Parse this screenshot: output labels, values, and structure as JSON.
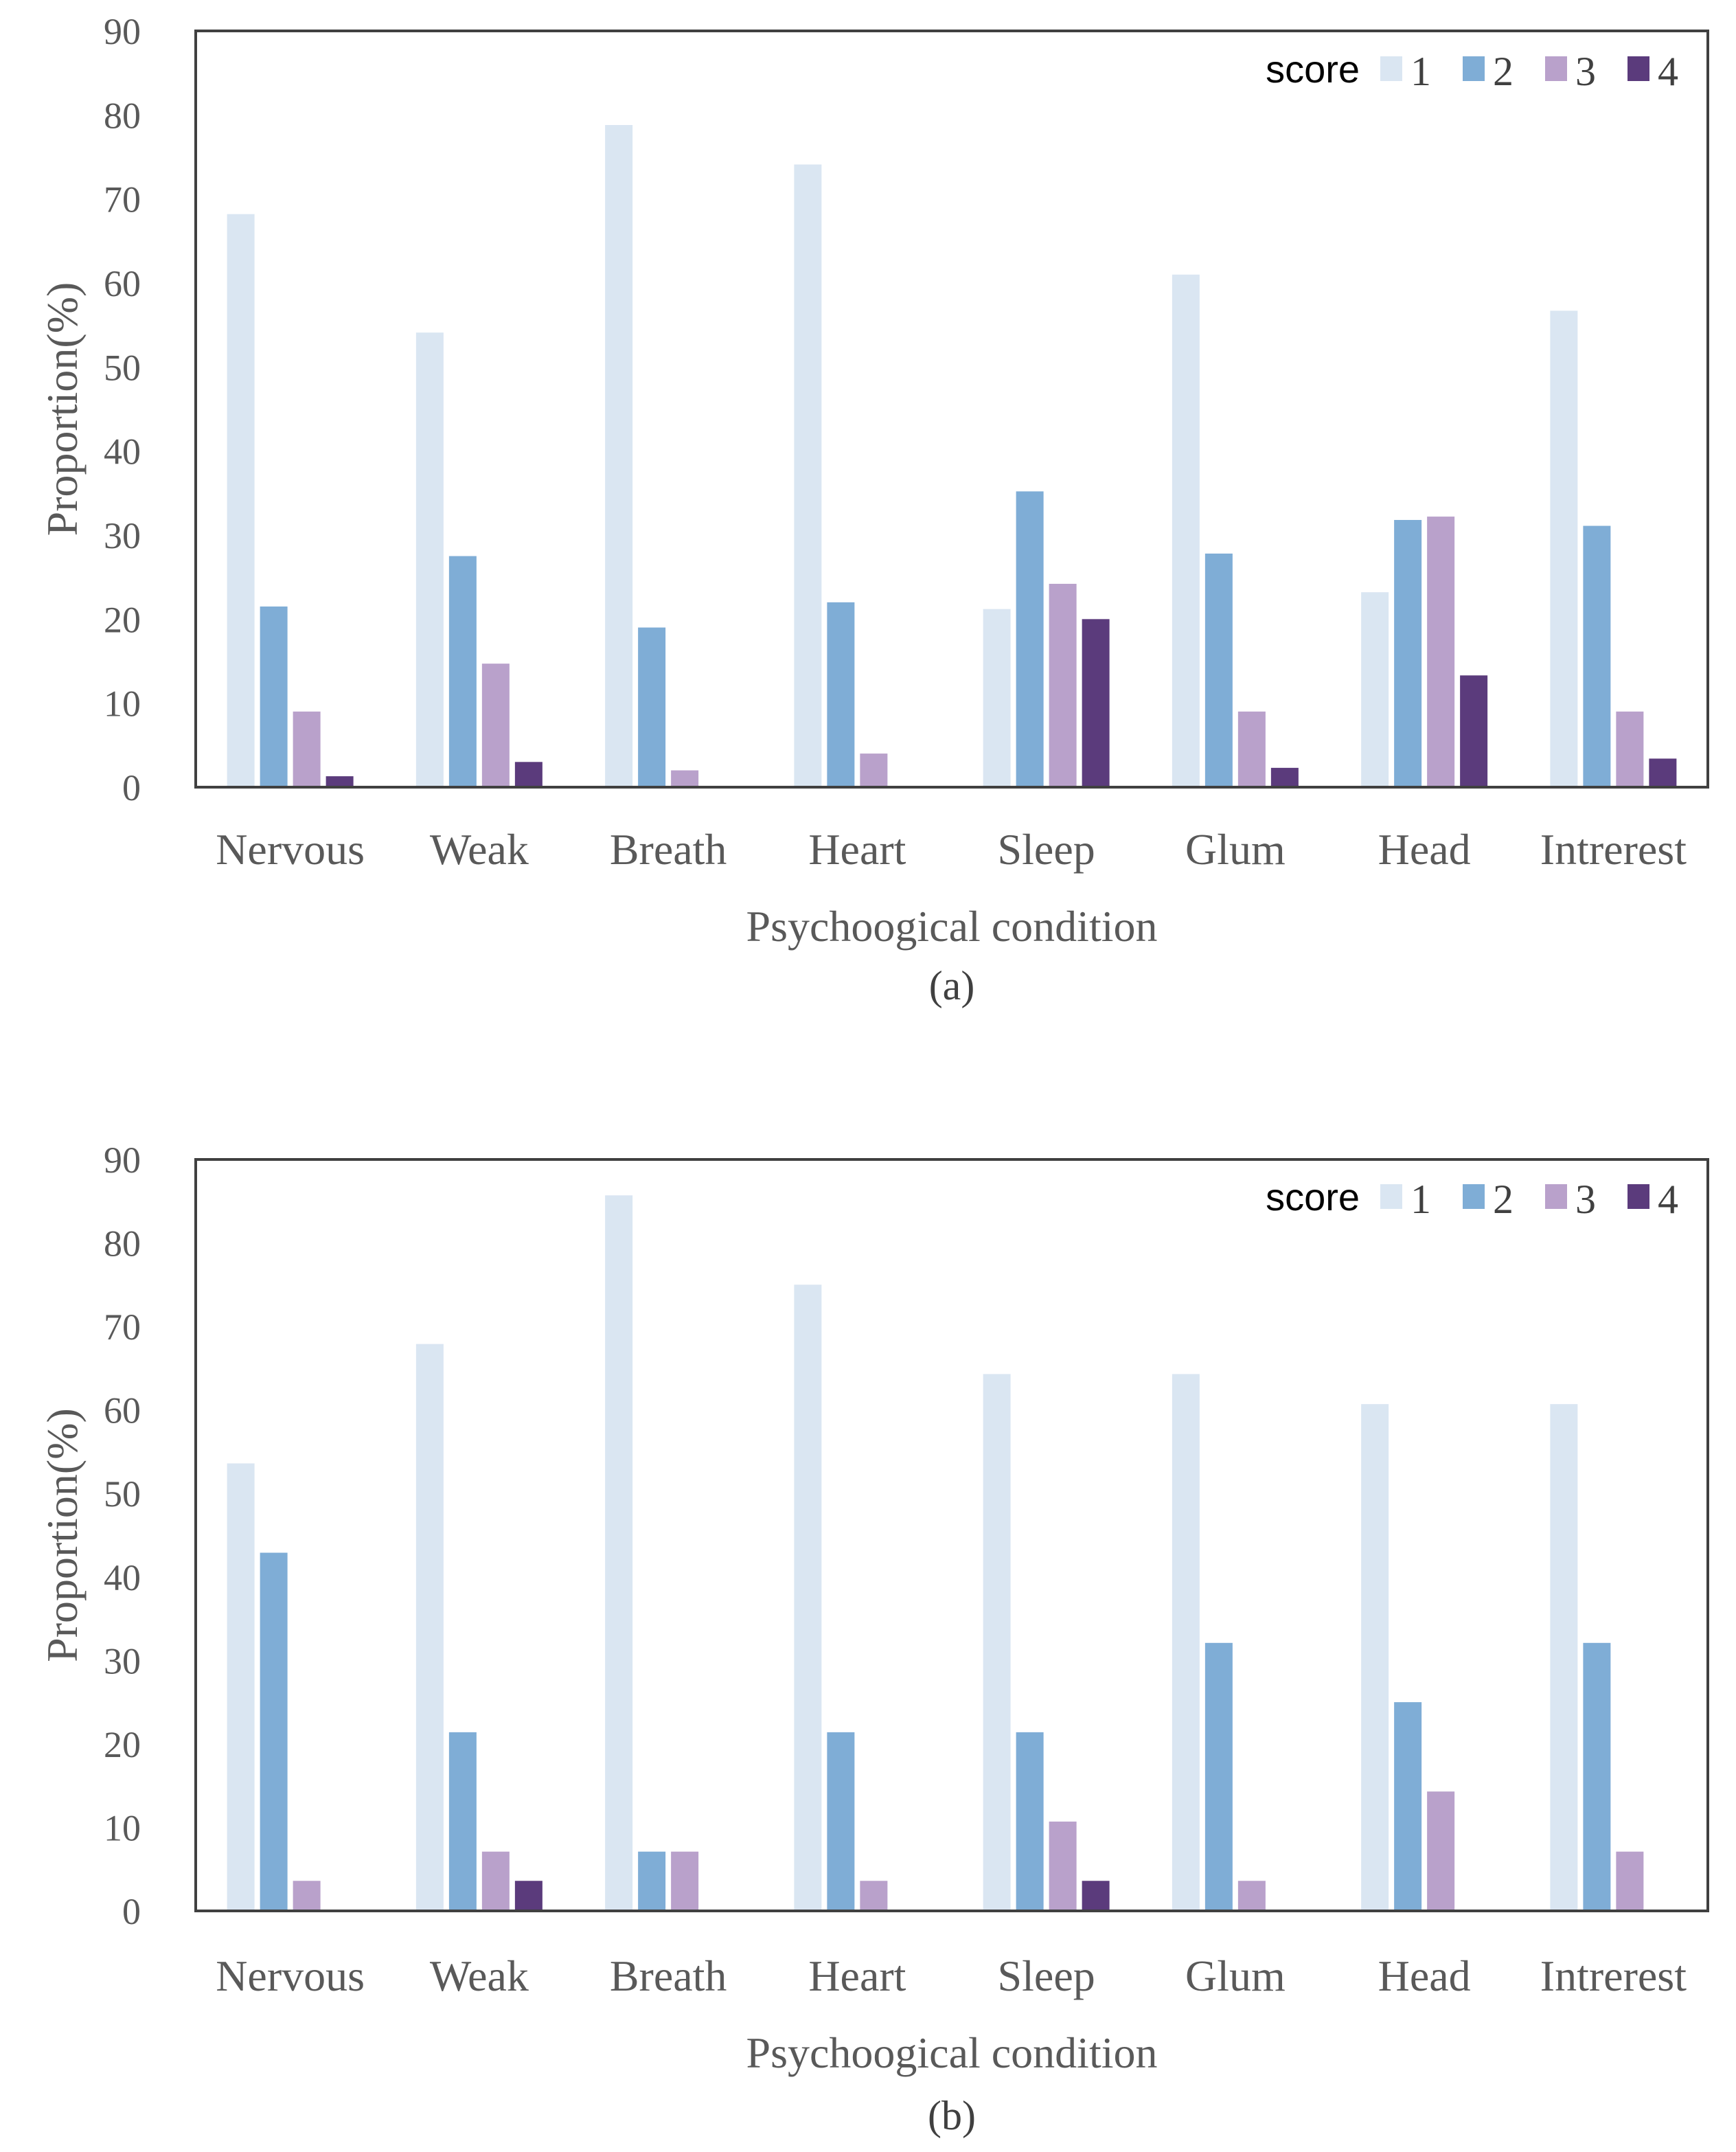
{
  "chart_data": [
    {
      "type": "bar",
      "caption": "(a)",
      "xlabel": "Psychoogical condition",
      "ylabel": "Proportion(%)",
      "ylim": [
        0,
        90
      ],
      "yticks": [
        0,
        10,
        20,
        30,
        40,
        50,
        60,
        70,
        80,
        90
      ],
      "legend_title": "score",
      "legend_position": "top-right",
      "categories": [
        "Nervous",
        "Weak",
        "Breath",
        "Heart",
        "Sleep",
        "Glum",
        "Head",
        "Intrerest"
      ],
      "series": [
        {
          "name": "1",
          "color": "#dae6f2",
          "values": [
            68.2,
            54.1,
            78.8,
            74.1,
            21.2,
            61.0,
            23.2,
            56.7
          ]
        },
        {
          "name": "2",
          "color": "#7fadd6",
          "values": [
            21.5,
            27.5,
            19.0,
            22.0,
            35.2,
            27.8,
            31.8,
            31.1
          ]
        },
        {
          "name": "3",
          "color": "#b9a1cb",
          "values": [
            9.0,
            14.7,
            2.0,
            4.0,
            24.2,
            9.0,
            32.2,
            9.0
          ]
        },
        {
          "name": "4",
          "color": "#5b3b7c",
          "values": [
            1.3,
            3.0,
            0,
            0,
            20.0,
            2.3,
            13.3,
            3.4
          ]
        }
      ]
    },
    {
      "type": "bar",
      "caption": "(b)",
      "xlabel": "Psychoogical condition",
      "ylabel": "Proportion(%)",
      "ylim": [
        0,
        90
      ],
      "yticks": [
        0,
        10,
        20,
        30,
        40,
        50,
        60,
        70,
        80,
        90
      ],
      "legend_title": "score",
      "legend_position": "top-right",
      "categories": [
        "Nervous",
        "Weak",
        "Breath",
        "Heart",
        "Sleep",
        "Glum",
        "Head",
        "Intrerest"
      ],
      "series": [
        {
          "name": "1",
          "color": "#dae6f2",
          "values": [
            53.6,
            67.9,
            85.7,
            75.0,
            64.3,
            64.3,
            60.7,
            60.7
          ]
        },
        {
          "name": "2",
          "color": "#7fadd6",
          "values": [
            42.9,
            21.4,
            7.1,
            21.4,
            21.4,
            32.1,
            25.0,
            32.1
          ]
        },
        {
          "name": "3",
          "color": "#b9a1cb",
          "values": [
            3.6,
            7.1,
            7.1,
            3.6,
            10.7,
            3.6,
            14.3,
            7.1
          ]
        },
        {
          "name": "4",
          "color": "#5b3b7c",
          "values": [
            0,
            3.6,
            0,
            0,
            3.6,
            0,
            0,
            0
          ]
        }
      ]
    }
  ]
}
